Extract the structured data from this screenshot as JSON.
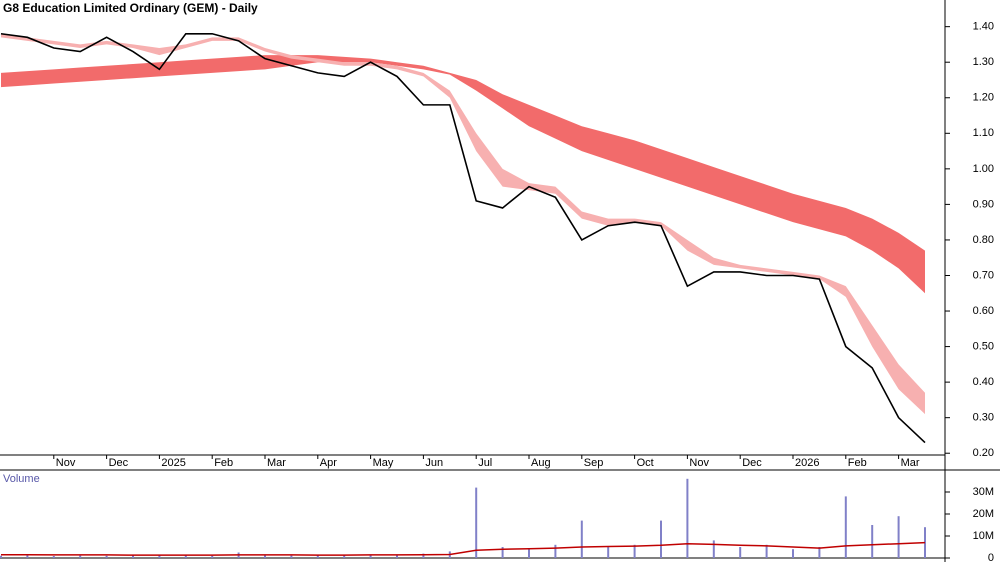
{
  "chart_data": [
    {
      "type": "line",
      "title": "G8 Education Limited Ordinary (GEM) - Daily",
      "categories": [
        null,
        null,
        "Nov",
        null,
        "Dec",
        null,
        "2025",
        null,
        "Feb",
        null,
        "Mar",
        null,
        "Apr",
        null,
        "May",
        null,
        "Jun",
        null,
        "Jul",
        null,
        "Aug",
        null,
        "Sep",
        null,
        "Oct",
        null,
        "Nov",
        null,
        "Dec",
        null,
        "2026",
        null,
        "Feb",
        null,
        "Mar",
        null
      ],
      "series": [
        {
          "color": "#000000",
          "values": [
            1.38,
            1.37,
            1.34,
            1.33,
            1.37,
            1.33,
            1.28,
            1.38,
            1.38,
            1.36,
            1.31,
            1.29,
            1.27,
            1.26,
            1.3,
            1.26,
            1.18,
            1.18,
            0.91,
            0.89,
            0.95,
            0.92,
            0.8,
            0.84,
            0.85,
            0.84,
            0.67,
            0.71,
            0.71,
            0.7,
            0.7,
            0.69,
            0.5,
            0.44,
            0.3,
            0.23
          ]
        }
      ],
      "bands": [
        {
          "color": "#f26b6b",
          "upper": [
            1.27,
            1.275,
            1.28,
            1.285,
            1.29,
            1.295,
            1.3,
            1.305,
            1.31,
            1.315,
            1.32,
            1.32,
            1.32,
            1.315,
            1.31,
            1.3,
            1.29,
            1.27,
            1.25,
            1.21,
            1.18,
            1.15,
            1.12,
            1.1,
            1.08,
            1.055,
            1.03,
            1.005,
            0.98,
            0.955,
            0.93,
            0.91,
            0.89,
            0.86,
            0.82,
            0.77
          ],
          "lower": [
            1.23,
            1.235,
            1.24,
            1.245,
            1.25,
            1.255,
            1.26,
            1.265,
            1.27,
            1.275,
            1.28,
            1.29,
            1.3,
            1.3,
            1.3,
            1.29,
            1.28,
            1.265,
            1.22,
            1.17,
            1.12,
            1.085,
            1.05,
            1.025,
            1.0,
            0.975,
            0.95,
            0.925,
            0.9,
            0.875,
            0.85,
            0.83,
            0.81,
            0.77,
            0.72,
            0.65
          ]
        },
        {
          "color": "#f7b0b0",
          "upper": [
            1.38,
            1.37,
            1.36,
            1.35,
            1.36,
            1.35,
            1.34,
            1.35,
            1.37,
            1.37,
            1.34,
            1.32,
            1.31,
            1.3,
            1.3,
            1.29,
            1.27,
            1.22,
            1.1,
            1.0,
            0.96,
            0.95,
            0.88,
            0.86,
            0.86,
            0.85,
            0.8,
            0.75,
            0.73,
            0.72,
            0.71,
            0.7,
            0.67,
            0.56,
            0.45,
            0.37
          ],
          "lower": [
            1.37,
            1.36,
            1.35,
            1.34,
            1.35,
            1.34,
            1.32,
            1.34,
            1.36,
            1.36,
            1.33,
            1.31,
            1.3,
            1.29,
            1.29,
            1.28,
            1.26,
            1.2,
            1.05,
            0.95,
            0.94,
            0.93,
            0.86,
            0.84,
            0.85,
            0.84,
            0.77,
            0.73,
            0.72,
            0.71,
            0.7,
            0.69,
            0.64,
            0.5,
            0.38,
            0.31
          ]
        }
      ],
      "ylim": [
        0.195,
        1.475
      ],
      "yticks": [
        {
          "value": 0.2,
          "label": "0.20"
        },
        {
          "value": 0.3,
          "label": "0.30"
        },
        {
          "value": 0.4,
          "label": "0.40"
        },
        {
          "value": 0.5,
          "label": "0.50"
        },
        {
          "value": 0.6,
          "label": "0.60"
        },
        {
          "value": 0.7,
          "label": "0.70"
        },
        {
          "value": 0.8,
          "label": "0.80"
        },
        {
          "value": 0.9,
          "label": "0.90"
        },
        {
          "value": 1.0,
          "label": "1.00"
        },
        {
          "value": 1.1,
          "label": "1.10"
        },
        {
          "value": 1.2,
          "label": "1.20"
        },
        {
          "value": 1.3,
          "label": "1.30"
        },
        {
          "value": 1.4,
          "label": "1.40"
        }
      ]
    },
    {
      "type": "bar",
      "title": "Volume",
      "color": "#8080c8",
      "values": [
        1000000,
        1200000,
        900000,
        1100000,
        1000000,
        1300000,
        1500000,
        1200000,
        1000000,
        2500000,
        1300000,
        1100000,
        1400000,
        1200000,
        1500000,
        1600000,
        2000000,
        3000000,
        32000000,
        5000000,
        4000000,
        6000000,
        17000000,
        5000000,
        6000000,
        17000000,
        36000000,
        8000000,
        5000000,
        6000000,
        4000000,
        5000000,
        28000000,
        15000000,
        19000000,
        14000000
      ],
      "average": {
        "color": "#c00000",
        "values": [
          1500000,
          1500000,
          1400000,
          1400000,
          1400000,
          1300000,
          1300000,
          1300000,
          1300000,
          1400000,
          1400000,
          1400000,
          1300000,
          1300000,
          1400000,
          1400000,
          1500000,
          1600000,
          3500000,
          4000000,
          4200000,
          4500000,
          5000000,
          5200000,
          5400000,
          5800000,
          6500000,
          6200000,
          5800000,
          5500000,
          5000000,
          4500000,
          5500000,
          6000000,
          6500000,
          7000000
        ]
      },
      "ylim": [
        0,
        40000000
      ],
      "yticks": [
        0,
        {
          "value": 10000000,
          "label": "10M"
        },
        {
          "value": 20000000,
          "label": "20M"
        },
        {
          "value": 30000000,
          "label": "30M"
        }
      ]
    }
  ]
}
